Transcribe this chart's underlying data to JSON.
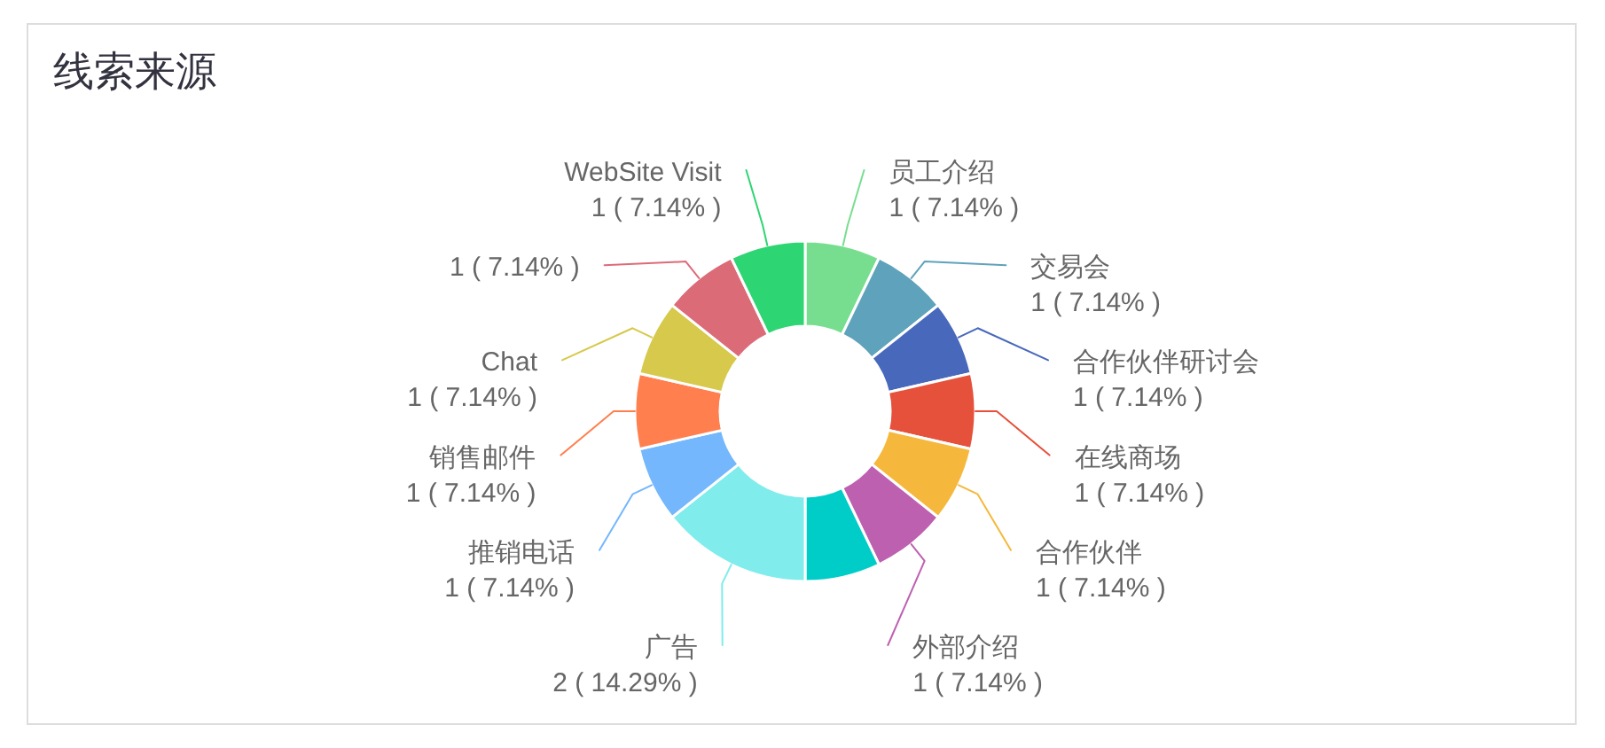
{
  "chart_data": {
    "type": "donut",
    "title": "线索来源",
    "categories": [
      "员工介绍",
      "交易会",
      "合作伙伴研讨会",
      "在线商场",
      "合作伙伴",
      "外部介绍",
      null,
      "广告",
      "推销电话",
      "销售邮件",
      "Chat",
      null,
      "WebSite Visit"
    ],
    "values": [
      1,
      1,
      1,
      1,
      1,
      1,
      1,
      2,
      1,
      1,
      1,
      1,
      1
    ],
    "colors": [
      "#77de8f",
      "#5fa2bb",
      "#4868bc",
      "#e5513a",
      "#f5b83c",
      "#be60b0",
      "#00cdc8",
      "#80ecec",
      "#74b7fc",
      "#ff7f4e",
      "#d6c94b",
      "#dc6b78",
      "#2ed573"
    ],
    "value_labels": [
      "1 ( 7.14% )",
      "1 ( 7.14% )",
      "1 ( 7.14% )",
      "1 ( 7.14% )",
      "1 ( 7.14% )",
      "1 ( 7.14% )",
      null,
      "2 ( 14.29% )",
      "1 ( 7.14% )",
      "1 ( 7.14% )",
      "1 ( 7.14% )",
      "1 ( 7.14% )",
      "1 ( 7.14% )"
    ]
  }
}
